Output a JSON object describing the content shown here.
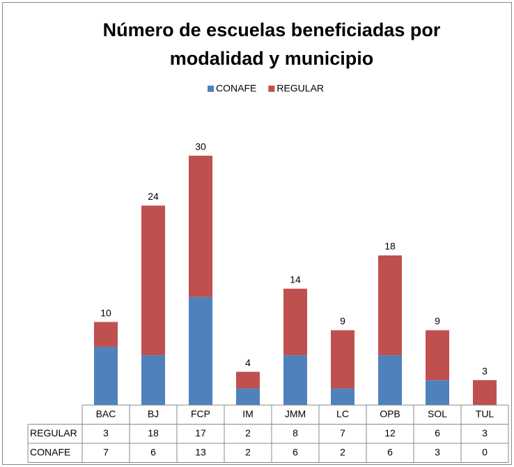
{
  "chart_data": {
    "type": "stacked_bar",
    "title": [
      "Número de escuelas beneficiadas por",
      "modalidad y municipio"
    ],
    "categories": [
      "BAC",
      "BJ",
      "FCP",
      "IM",
      "JMM",
      "LC",
      "OPB",
      "SOL",
      "TUL"
    ],
    "series": [
      {
        "name": "CONAFE",
        "color": "#4f81bd",
        "values": [
          7,
          6,
          13,
          2,
          6,
          2,
          6,
          3,
          0
        ]
      },
      {
        "name": "REGULAR",
        "color": "#c0504d",
        "values": [
          3,
          18,
          17,
          2,
          8,
          7,
          12,
          6,
          3
        ]
      }
    ],
    "totals": [
      10,
      24,
      30,
      4,
      14,
      9,
      18,
      9,
      3
    ],
    "ylim": [
      0,
      35
    ],
    "legend": "top",
    "data_table": true
  }
}
